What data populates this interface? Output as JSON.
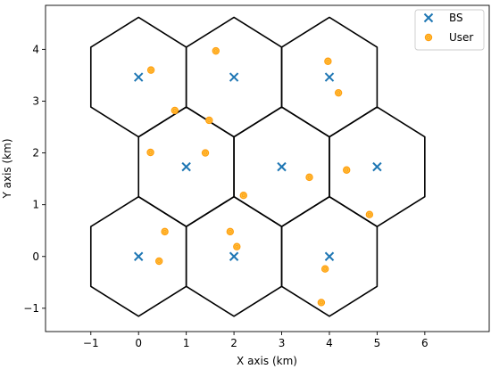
{
  "chart_data": {
    "type": "scatter",
    "title": "",
    "xlabel": "X axis (km)",
    "ylabel": "Y axis (km)",
    "xlim": [
      -1.95,
      7.35
    ],
    "ylim": [
      -1.45,
      4.85
    ],
    "x_ticks": [
      -1,
      0,
      1,
      2,
      3,
      4,
      5,
      6
    ],
    "x_tick_labels": [
      "−1",
      "0",
      "1",
      "2",
      "3",
      "4",
      "5",
      "6"
    ],
    "y_ticks": [
      -1,
      0,
      1,
      2,
      3,
      4
    ],
    "y_tick_labels": [
      "−1",
      "0",
      "1",
      "2",
      "3",
      "4"
    ],
    "grid": false,
    "legend_position": "top-right",
    "hexagon_circumradius_km": 1.1547,
    "colors": {
      "bs": "#1f77b4",
      "user_face": "#ffbf40",
      "user_edge": "#ff9e0e",
      "hexagon": "#000000"
    },
    "series": [
      {
        "name": "BS",
        "marker": "x",
        "points": [
          [
            0,
            0
          ],
          [
            2,
            0
          ],
          [
            4,
            0
          ],
          [
            1,
            1.732
          ],
          [
            3,
            1.732
          ],
          [
            5,
            1.732
          ],
          [
            0,
            3.464
          ],
          [
            2,
            3.464
          ],
          [
            4,
            3.464
          ]
        ]
      },
      {
        "name": "User",
        "marker": "o",
        "points": [
          [
            0.55,
            0.48
          ],
          [
            0.43,
            -0.09
          ],
          [
            1.92,
            0.48
          ],
          [
            2.06,
            0.19
          ],
          [
            3.91,
            -0.24
          ],
          [
            3.83,
            -0.89
          ],
          [
            0.25,
            2.01
          ],
          [
            1.4,
            2.0
          ],
          [
            2.2,
            1.18
          ],
          [
            3.58,
            1.53
          ],
          [
            4.36,
            1.67
          ],
          [
            4.84,
            0.81
          ],
          [
            0.26,
            3.6
          ],
          [
            0.76,
            2.82
          ],
          [
            1.48,
            2.63
          ],
          [
            1.62,
            3.97
          ],
          [
            3.97,
            3.77
          ],
          [
            4.19,
            3.16
          ]
        ]
      }
    ]
  }
}
